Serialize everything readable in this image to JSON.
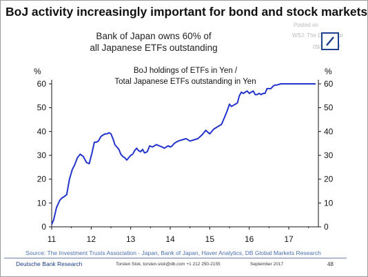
{
  "headline": "BoJ activity increasingly important for bond and stock markets.",
  "subtitle_lines": [
    "Bank of Japan owns 60% of",
    "all Japanese ETFs outstanding"
  ],
  "watermark": {
    "posted": "Posted on",
    "source": "WSJ: The Daily Shot",
    "date": "09/15/2017"
  },
  "colors": {
    "line": "#2233cc",
    "axis": "#111111",
    "source_text": "#4a6fb1",
    "brand_blue": "#1a3a85"
  },
  "logo_icon": "deutsche-bank-slash-logo",
  "chart_data": {
    "type": "line",
    "title_lines": [
      "BoJ holdings of ETFs in Yen /",
      "Total Japanese ETFs outstanding in Yen"
    ],
    "left_unit": "%",
    "right_unit": "%",
    "ylim": [
      0,
      60
    ],
    "yticks": [
      0,
      10,
      20,
      30,
      40,
      50,
      60
    ],
    "xlim": [
      2011.0,
      2017.75
    ],
    "xticks": [
      2011,
      2012,
      2013,
      2014,
      2015,
      2016,
      2017
    ],
    "xtick_labels": [
      "11",
      "12",
      "13",
      "14",
      "15",
      "16",
      "17"
    ],
    "grid": false,
    "series": [
      {
        "x": [
          2011.0,
          2011.05,
          2011.12,
          2011.2,
          2011.25,
          2011.3,
          2011.38,
          2011.45,
          2011.52,
          2011.58,
          2011.65,
          2011.72,
          2011.8,
          2011.88,
          2011.95,
          2012.02,
          2012.08,
          2012.13,
          2012.18,
          2012.25,
          2012.3,
          2012.35,
          2012.4,
          2012.45,
          2012.5,
          2012.55,
          2012.6,
          2012.65,
          2012.7,
          2012.75,
          2012.8,
          2012.85,
          2012.9,
          2012.95,
          2013.0,
          2013.05,
          2013.1,
          2013.15,
          2013.2,
          2013.25,
          2013.3,
          2013.35,
          2013.42,
          2013.48,
          2013.55,
          2013.6,
          2013.65,
          2013.72,
          2013.8,
          2013.85,
          2013.9,
          2013.95,
          2014.0,
          2014.05,
          2014.1,
          2014.15,
          2014.2,
          2014.3,
          2014.4,
          2014.5,
          2014.6,
          2014.7,
          2014.8,
          2014.9,
          2015.0,
          2015.1,
          2015.2,
          2015.3,
          2015.35,
          2015.4,
          2015.45,
          2015.5,
          2015.55,
          2015.6,
          2015.65,
          2015.7,
          2015.75,
          2015.8,
          2015.85,
          2015.9,
          2015.95,
          2016.0,
          2016.05,
          2016.1,
          2016.15,
          2016.2,
          2016.25,
          2016.3,
          2016.35,
          2016.4,
          2016.45,
          2016.5,
          2016.55,
          2016.6,
          2016.65,
          2016.7,
          2016.8,
          2016.9,
          2017.0,
          2017.1,
          2017.2,
          2017.3,
          2017.35,
          2017.4,
          2017.5,
          2017.6,
          2017.68
        ],
        "y": [
          1,
          3,
          8,
          11,
          12,
          12.5,
          13.5,
          20,
          24,
          26,
          29,
          30.5,
          29.5,
          27,
          26.5,
          31,
          35.5,
          35.5,
          36,
          38,
          38.5,
          39,
          39,
          39.5,
          39,
          37,
          34.5,
          33.5,
          32.5,
          30.5,
          29.5,
          29,
          28,
          29,
          30,
          30.5,
          32,
          33,
          32,
          31.5,
          32.5,
          31,
          31.5,
          34,
          33.5,
          34,
          34.5,
          34,
          33.5,
          33,
          33.5,
          34,
          33.5,
          34,
          35,
          35.5,
          36,
          36.5,
          37,
          36,
          36.5,
          37,
          38.5,
          40.5,
          39,
          41,
          42,
          43,
          45,
          47,
          49,
          51.5,
          50.5,
          51,
          51.5,
          52,
          55,
          56.5,
          56,
          56.5,
          57,
          56,
          56.5,
          57,
          55.5,
          55.5,
          56,
          55.5,
          56,
          56,
          58,
          58,
          58,
          59,
          59.5,
          59.5,
          60,
          60,
          60,
          60,
          60,
          60,
          60,
          60,
          60,
          60,
          60
        ]
      }
    ]
  },
  "source": "Source: The Investment Trusts Association - Japan, Bank of Japan, Haver Analytics, DB Global Markets Research",
  "footer": {
    "org": "Deutsche Bank Research",
    "contact": "Torsten Slok, torsten.slok@db.com  +1 212 250-2155",
    "date": "September  2017",
    "page": "48"
  }
}
